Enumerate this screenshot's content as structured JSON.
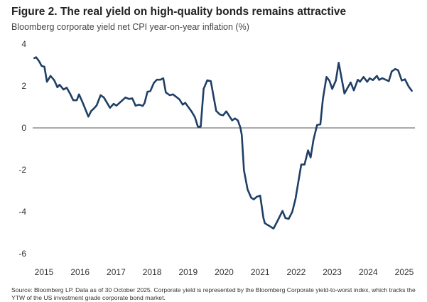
{
  "chart_data": {
    "type": "line",
    "title": "Figure 2. The real yield on high-quality bonds remains attractive",
    "subtitle": "Bloomberg corporate yield net CPI year-on-year inflation (%)",
    "source": "Source: Bloomberg LP. Data as of 30 October 2025. Corporate yield is represented by the Bloomberg Corporate yield-to-worst index, which tracks the YTW of the US investment grade corporate bond market.",
    "xlabel": "",
    "ylabel": "",
    "ylim": [
      -6,
      4
    ],
    "yticks": [
      4,
      2,
      0,
      -2,
      -4,
      -6
    ],
    "xticks": [
      "2015",
      "2016",
      "2017",
      "2018",
      "2019",
      "2020",
      "2021",
      "2022",
      "2023",
      "2024",
      "2025"
    ],
    "grid": false,
    "zero_line": true,
    "line_color": "#1f3f66",
    "series": [
      {
        "x": [
          2015.23,
          2015.28,
          2015.36,
          2015.43,
          2015.51,
          2015.58,
          2015.68,
          2015.78,
          2015.87,
          2015.93,
          2016.04,
          2016.13,
          2016.22,
          2016.31,
          2016.41,
          2016.47,
          2016.56,
          2016.73,
          2016.81,
          2016.87,
          2016.96,
          2017.07,
          2017.16,
          2017.33,
          2017.43,
          2017.51,
          2017.76,
          2017.86,
          2017.95,
          2018.04,
          2018.14,
          2018.24,
          2018.29,
          2018.37,
          2018.45,
          2018.55,
          2018.63,
          2018.73,
          2018.81,
          2018.88,
          2018.99,
          2019.08,
          2019.26,
          2019.35,
          2019.42,
          2019.6,
          2019.69,
          2019.77,
          2019.85,
          2019.93,
          2020.03,
          2020.13,
          2020.28,
          2020.38,
          2020.47,
          2020.56,
          2020.72,
          2020.8,
          2020.88,
          2020.95,
          2020.99,
          2021.05,
          2021.15,
          2021.25,
          2021.32,
          2021.41,
          2021.5,
          2021.59,
          2021.63,
          2021.87,
          2021.99,
          2022.12,
          2022.2,
          2022.29,
          2022.39,
          2022.48,
          2022.64,
          2022.73,
          2022.83,
          2022.9,
          2022.98,
          2023.08,
          2023.17,
          2023.24,
          2023.34,
          2023.42,
          2023.5,
          2023.6,
          2023.68,
          2023.84,
          2024.01,
          2024.1,
          2024.21,
          2024.27,
          2024.37,
          2024.47,
          2024.54,
          2024.63,
          2024.74,
          2024.8,
          2024.89,
          2025.07,
          2025.15,
          2025.25,
          2025.33,
          2025.43,
          2025.52,
          2025.62,
          2025.71
        ],
        "y": [
          3.33,
          3.37,
          3.19,
          2.96,
          2.92,
          2.2,
          2.48,
          2.28,
          1.94,
          2.06,
          1.83,
          1.92,
          1.64,
          1.32,
          1.32,
          1.6,
          1.26,
          0.54,
          0.81,
          0.9,
          1.07,
          1.56,
          1.45,
          0.96,
          1.15,
          1.06,
          1.45,
          1.38,
          1.41,
          1.06,
          1.11,
          1.05,
          1.19,
          1.72,
          1.76,
          2.15,
          2.3,
          2.3,
          2.37,
          1.69,
          1.56,
          1.6,
          1.36,
          1.11,
          1.2,
          0.77,
          0.51,
          0.06,
          0.06,
          1.86,
          2.27,
          2.23,
          0.81,
          0.64,
          0.6,
          0.79,
          0.36,
          0.45,
          0.36,
          0.02,
          -0.34,
          -2.03,
          -2.94,
          -3.33,
          -3.41,
          -3.28,
          -3.23,
          -4.3,
          -4.55,
          -4.8,
          -4.41,
          -3.96,
          -4.3,
          -4.34,
          -4.01,
          -3.39,
          -1.75,
          -1.75,
          -1.07,
          -1.41,
          -0.57,
          0.14,
          0.17,
          1.36,
          2.43,
          2.26,
          1.86,
          2.26,
          3.11,
          1.64,
          2.17,
          1.79,
          2.3,
          2.2,
          2.43,
          2.2,
          2.37,
          2.28,
          2.48,
          2.29,
          2.37,
          2.23,
          2.69,
          2.81,
          2.75,
          2.26,
          2.32,
          1.98,
          1.77
        ]
      }
    ]
  }
}
